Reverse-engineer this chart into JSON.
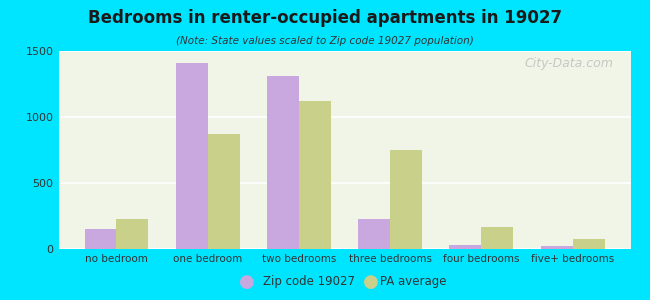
{
  "title": "Bedrooms in renter-occupied apartments in 19027",
  "subtitle": "(Note: State values scaled to Zip code 19027 population)",
  "categories": [
    "no bedroom",
    "one bedroom",
    "two bedrooms",
    "three bedrooms",
    "four bedrooms",
    "five+ bedrooms"
  ],
  "zip_values": [
    150,
    1410,
    1310,
    225,
    30,
    25
  ],
  "pa_values": [
    230,
    870,
    1120,
    750,
    170,
    75
  ],
  "zip_color": "#c9a8e0",
  "pa_color": "#c8d08a",
  "background_color": "#00e5ff",
  "plot_bg": "#f0f5e8",
  "ylim": [
    0,
    1500
  ],
  "yticks": [
    0,
    500,
    1000,
    1500
  ],
  "bar_width": 0.35,
  "zip_label": "Zip code 19027",
  "pa_label": "PA average",
  "watermark": "City-Data.com"
}
